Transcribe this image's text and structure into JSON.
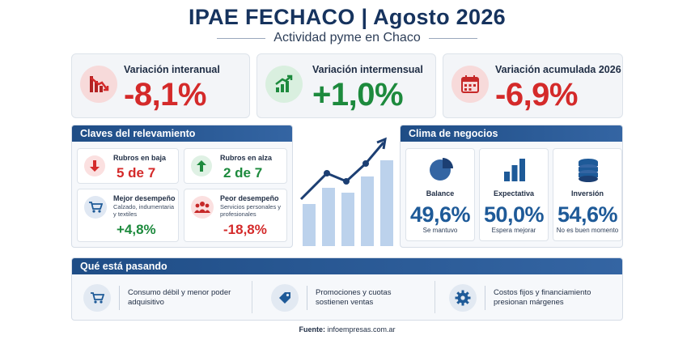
{
  "header": {
    "title": "IPAE FECHACO | Agosto 2026",
    "subtitle": "Actividad pyme en Chaco"
  },
  "kpis": [
    {
      "label": "Variación interanual",
      "value": "-8,1%",
      "color": "#d42a2a",
      "icon": "trend-down-icon"
    },
    {
      "label": "Variación intermensual",
      "value": "+1,0%",
      "color": "#1d8a3d",
      "icon": "trend-up-icon"
    },
    {
      "label": "Variación acumulada 2026",
      "value": "-6,9%",
      "color": "#d42a2a",
      "icon": "calendar-icon"
    }
  ],
  "claves": {
    "title": "Claves del relevamiento",
    "baja": {
      "label": "Rubros en baja",
      "value": "5 de 7",
      "icon": "arrow-down-icon"
    },
    "alza": {
      "label": "Rubros en alza",
      "value": "2 de 7",
      "icon": "arrow-up-icon"
    },
    "mejor": {
      "label": "Mejor desempeño",
      "detail": "Calzado, indumentaria y textiles",
      "value": "+4,8%",
      "icon": "cart-icon"
    },
    "peor": {
      "label": "Peor desempeño",
      "detail": "Servicios personales y profesionales",
      "value": "-18,8%",
      "icon": "people-icon"
    }
  },
  "clima": {
    "title": "Clima de negocios",
    "items": [
      {
        "label": "Balance",
        "value": "49,6%",
        "note": "Se mantuvo",
        "icon": "pie-icon"
      },
      {
        "label": "Expectativa",
        "value": "50,0%",
        "note": "Espera mejorar",
        "icon": "bars-icon"
      },
      {
        "label": "Inversión",
        "value": "54,6%",
        "note": "No es buen momento",
        "icon": "coins-icon"
      }
    ]
  },
  "pasando": {
    "title": "Qué está pasando",
    "items": [
      {
        "text": "Consumo débil y menor poder adquisitivo",
        "icon": "cart-icon"
      },
      {
        "text": "Promociones y cuotas sostienen ventas",
        "icon": "tag-icon"
      },
      {
        "text": "Costos fijos y financiamiento presionan márgenes",
        "icon": "gear-icon"
      }
    ]
  },
  "source": {
    "label": "Fuente:",
    "value": "infoempresas.com.ar"
  },
  "colors": {
    "navy": "#16335e",
    "red": "#d42a2a",
    "green": "#1d8a3d",
    "blue": "#1e5a98"
  }
}
